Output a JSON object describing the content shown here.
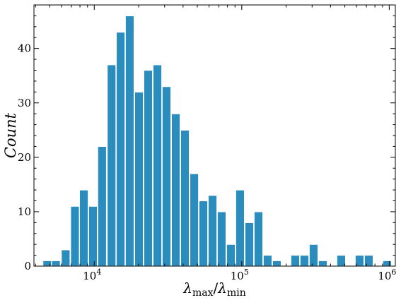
{
  "chart_data": {
    "type": "bar",
    "title": "",
    "xlabel": "λmax/λmin",
    "xlabel_parts": {
      "base": "λ",
      "num_sub": "max",
      "sep": "/",
      "den_sub": "min"
    },
    "ylabel": "Count",
    "x_scale": "log",
    "xlim": [
      3900,
      1100000
    ],
    "ylim": [
      0,
      48
    ],
    "grid": false,
    "legend": "none",
    "color": "#2b8cbe",
    "yticks": [
      0,
      10,
      20,
      30,
      40
    ],
    "xticks": [
      {
        "value": 10000,
        "base": "10",
        "exp": "4"
      },
      {
        "value": 100000,
        "base": "10",
        "exp": "5"
      },
      {
        "value": 1000000,
        "base": "10",
        "exp": "6"
      }
    ],
    "bars": [
      {
        "x": 4800,
        "count": 1
      },
      {
        "x": 5500,
        "count": 1
      },
      {
        "x": 6400,
        "count": 3
      },
      {
        "x": 7400,
        "count": 11
      },
      {
        "x": 8500,
        "count": 14
      },
      {
        "x": 9800,
        "count": 11
      },
      {
        "x": 11300,
        "count": 22
      },
      {
        "x": 13100,
        "count": 37
      },
      {
        "x": 15100,
        "count": 43
      },
      {
        "x": 17400,
        "count": 46
      },
      {
        "x": 20100,
        "count": 32
      },
      {
        "x": 23200,
        "count": 36
      },
      {
        "x": 26800,
        "count": 37
      },
      {
        "x": 30900,
        "count": 33
      },
      {
        "x": 35700,
        "count": 28
      },
      {
        "x": 41200,
        "count": 25
      },
      {
        "x": 47600,
        "count": 17
      },
      {
        "x": 54900,
        "count": 12
      },
      {
        "x": 63400,
        "count": 13
      },
      {
        "x": 73100,
        "count": 10
      },
      {
        "x": 84400,
        "count": 4
      },
      {
        "x": 97400,
        "count": 14
      },
      {
        "x": 112500,
        "count": 8
      },
      {
        "x": 129800,
        "count": 10
      },
      {
        "x": 149800,
        "count": 2
      },
      {
        "x": 173000,
        "count": 1
      },
      {
        "x": 199700,
        "count": 0
      },
      {
        "x": 230500,
        "count": 2
      },
      {
        "x": 266000,
        "count": 2
      },
      {
        "x": 307100,
        "count": 4
      },
      {
        "x": 354500,
        "count": 1
      },
      {
        "x": 409200,
        "count": 0
      },
      {
        "x": 472300,
        "count": 2
      },
      {
        "x": 545200,
        "count": 0
      },
      {
        "x": 629300,
        "count": 2
      },
      {
        "x": 726400,
        "count": 2
      },
      {
        "x": 838500,
        "count": 0
      },
      {
        "x": 967900,
        "count": 1
      }
    ]
  }
}
